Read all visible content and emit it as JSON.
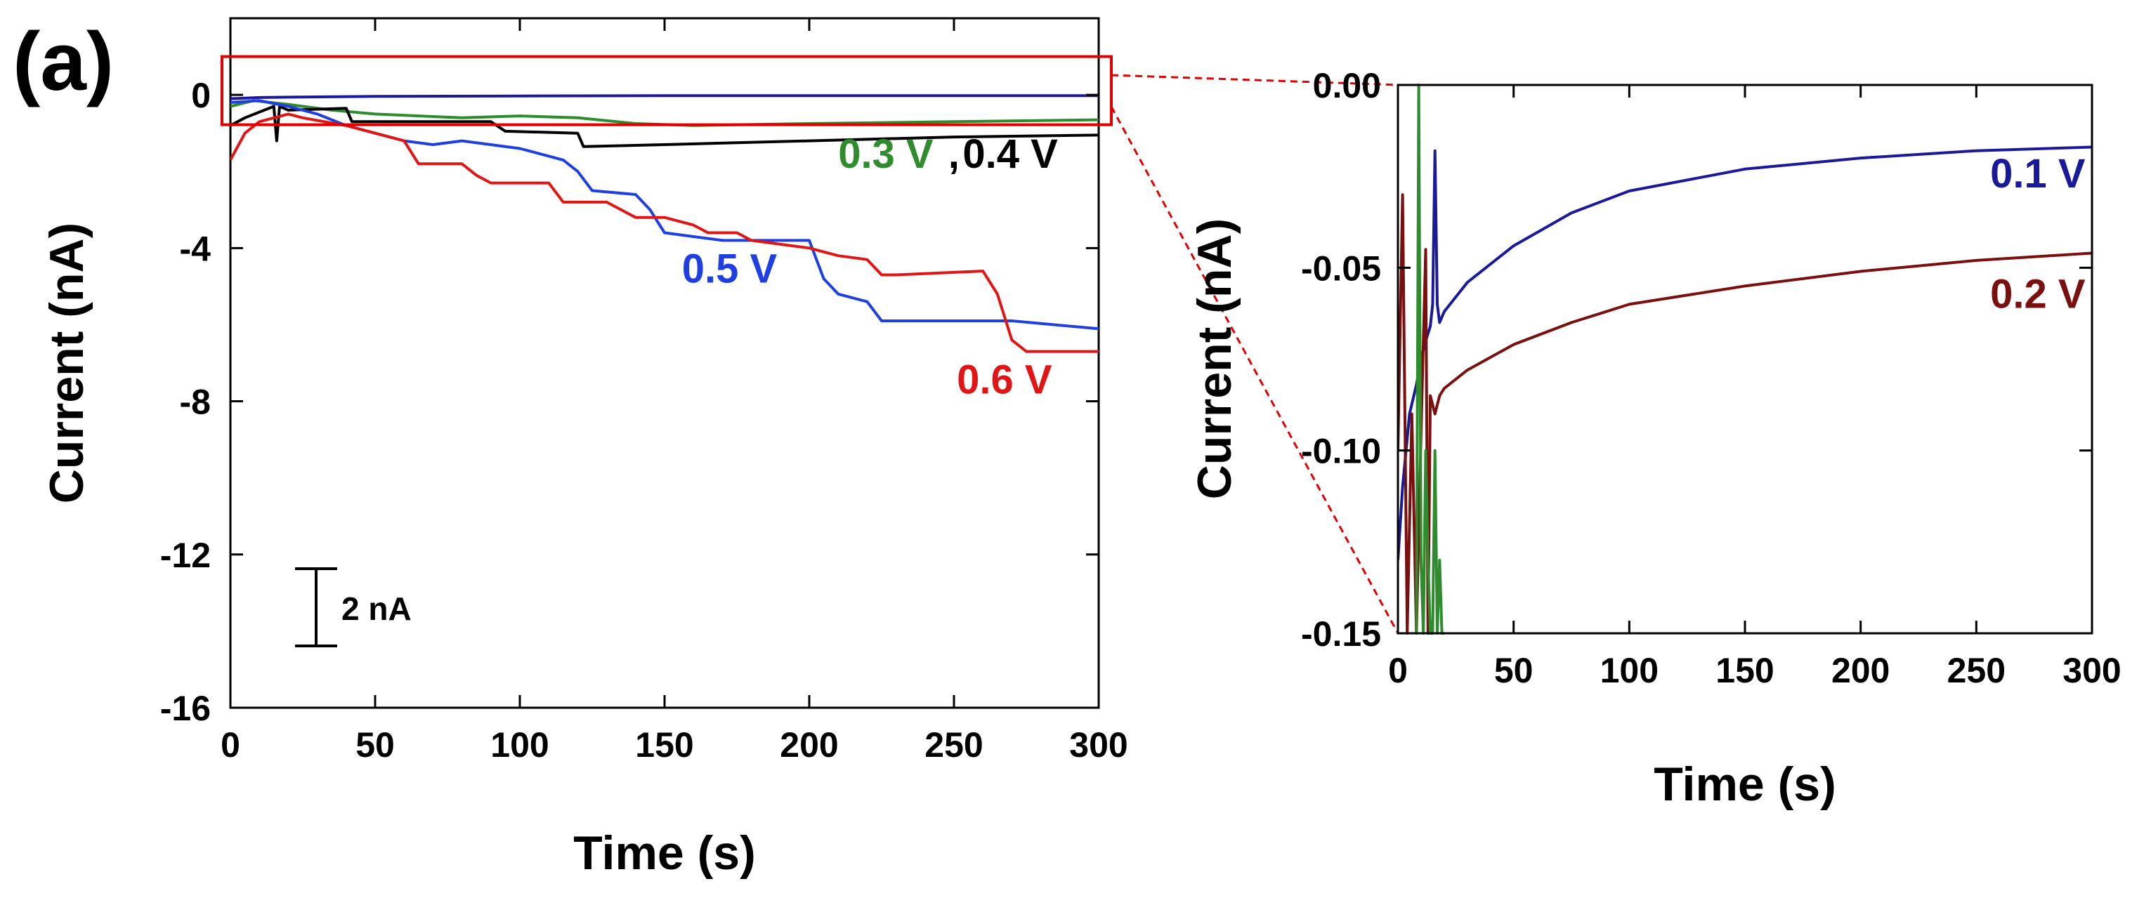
{
  "panel_label": "(a)",
  "scale_bar_label": "2 nA",
  "chart_data": [
    {
      "type": "line",
      "name": "main",
      "title": "",
      "xlabel": "Time (s)",
      "ylabel": "Current (nA)",
      "xlim": [
        0,
        300
      ],
      "ylim": [
        -16,
        2
      ],
      "xticks": [
        0,
        50,
        100,
        150,
        200,
        250,
        300
      ],
      "yticks": [
        0,
        -4,
        -8,
        -12,
        -16
      ],
      "grid": false,
      "zoom_box": {
        "x": [
          0,
          300
        ],
        "y": [
          -0.45,
          0.45
        ]
      },
      "series": [
        {
          "name": "0.1 V",
          "color": "#1a1a99",
          "x": [
            0,
            10,
            20,
            50,
            100,
            150,
            200,
            250,
            300
          ],
          "y": [
            -0.1,
            -0.07,
            -0.06,
            -0.04,
            -0.03,
            -0.02,
            -0.02,
            -0.02,
            -0.02
          ]
        },
        {
          "name": "0.3 V",
          "color": "#2e8b2e",
          "x": [
            0,
            8,
            20,
            35,
            50,
            80,
            100,
            120,
            140,
            160,
            200,
            250,
            300
          ],
          "y": [
            -0.3,
            -0.15,
            -0.25,
            -0.4,
            -0.5,
            -0.6,
            -0.55,
            -0.6,
            -0.75,
            -0.8,
            -0.75,
            -0.7,
            -0.65
          ]
        },
        {
          "name": "0.4 V",
          "color": "#000000",
          "x": [
            0,
            5,
            15,
            16,
            17,
            20,
            40,
            42,
            90,
            95,
            120,
            122,
            150,
            200,
            250,
            300
          ],
          "y": [
            -0.8,
            -0.6,
            -0.3,
            -1.2,
            -0.3,
            -0.4,
            -0.35,
            -0.7,
            -0.7,
            -0.95,
            -1.0,
            -1.35,
            -1.3,
            -1.2,
            -1.1,
            -1.05
          ]
        },
        {
          "name": "0.5 V",
          "color": "#1f3fe0",
          "x": [
            0,
            10,
            20,
            30,
            40,
            50,
            60,
            70,
            80,
            100,
            110,
            115,
            120,
            125,
            140,
            145,
            150,
            160,
            170,
            200,
            205,
            210,
            220,
            225,
            250,
            270,
            299,
            300
          ],
          "y": [
            -0.2,
            -0.15,
            -0.3,
            -0.5,
            -0.8,
            -1.0,
            -1.2,
            -1.3,
            -1.2,
            -1.4,
            -1.6,
            -1.7,
            -2.0,
            -2.5,
            -2.6,
            -3.0,
            -3.6,
            -3.7,
            -3.8,
            -3.8,
            -4.8,
            -5.2,
            -5.4,
            -5.9,
            -5.9,
            -5.9,
            -6.1,
            -6.1
          ]
        },
        {
          "name": "0.6 V",
          "color": "#e01515",
          "x": [
            0,
            5,
            10,
            20,
            25,
            40,
            60,
            65,
            80,
            85,
            90,
            110,
            115,
            130,
            140,
            150,
            160,
            165,
            175,
            180,
            190,
            200,
            210,
            220,
            225,
            230,
            260,
            265,
            270,
            275,
            300
          ],
          "y": [
            -1.7,
            -1.0,
            -0.7,
            -0.5,
            -0.6,
            -0.8,
            -1.2,
            -1.8,
            -1.8,
            -2.1,
            -2.3,
            -2.3,
            -2.8,
            -2.8,
            -3.2,
            -3.2,
            -3.4,
            -3.6,
            -3.6,
            -3.8,
            -3.9,
            -4.0,
            -4.2,
            -4.3,
            -4.7,
            -4.7,
            -4.6,
            -5.2,
            -6.4,
            -6.7,
            -6.7
          ]
        }
      ],
      "annotations": [
        {
          "text": "0.3 V",
          "color": "#2e8b2e",
          "x": 210,
          "y": -1.9
        },
        {
          "text": ",",
          "color": "#000000",
          "x": 248,
          "y": -1.9
        },
        {
          "text": "0.4 V",
          "color": "#000000",
          "x": 253,
          "y": -1.9
        },
        {
          "text": "0.5 V",
          "color": "#1f3fe0",
          "x": 156,
          "y": -4.9
        },
        {
          "text": "0.6 V",
          "color": "#e01515",
          "x": 251,
          "y": -7.8
        }
      ]
    },
    {
      "type": "line",
      "name": "inset",
      "title": "",
      "xlabel": "Time (s)",
      "ylabel": "Current (nA)",
      "xlim": [
        0,
        300
      ],
      "ylim": [
        -0.15,
        0.0
      ],
      "xticks": [
        0,
        50,
        100,
        150,
        200,
        250,
        300
      ],
      "yticks": [
        "0.00",
        "-0.05",
        "-0.10",
        "-0.15"
      ],
      "grid": false,
      "series": [
        {
          "name": "0.1 V",
          "color": "#1a1a99",
          "x": [
            0,
            2,
            5,
            8,
            10,
            12,
            14,
            15,
            16,
            17,
            18,
            20,
            30,
            50,
            75,
            100,
            150,
            200,
            250,
            300
          ],
          "y": [
            -0.13,
            -0.11,
            -0.09,
            -0.082,
            -0.075,
            -0.07,
            -0.066,
            -0.06,
            -0.018,
            -0.06,
            -0.065,
            -0.062,
            -0.054,
            -0.044,
            -0.035,
            -0.029,
            -0.023,
            -0.02,
            -0.018,
            -0.017
          ]
        },
        {
          "name": "0.2 V",
          "color": "#7a0f0f",
          "x": [
            0,
            2,
            4,
            6,
            8,
            10,
            12,
            13,
            14,
            16,
            18,
            20,
            30,
            50,
            75,
            100,
            150,
            200,
            250,
            300
          ],
          "y": [
            -0.1,
            -0.03,
            -0.15,
            -0.09,
            -0.15,
            -0.095,
            -0.045,
            -0.15,
            -0.085,
            -0.09,
            -0.085,
            -0.083,
            -0.078,
            -0.071,
            -0.065,
            -0.06,
            -0.055,
            -0.051,
            -0.048,
            -0.046
          ]
        },
        {
          "name": "0.3 V",
          "color": "#2e8b2e",
          "x": [
            8,
            9,
            10,
            11,
            12,
            13,
            14,
            15,
            16,
            17,
            18,
            19,
            20
          ],
          "y": [
            -0.15,
            0.0,
            -0.13,
            -0.15,
            -0.1,
            -0.13,
            -0.15,
            -0.15,
            -0.1,
            -0.15,
            -0.13,
            -0.15,
            -0.15
          ]
        }
      ],
      "annotations": [
        {
          "text": "0.1 V",
          "color": "#1a1a99",
          "x": 256,
          "y": -0.028
        },
        {
          "text": "0.2 V",
          "color": "#7a0f0f",
          "x": 256,
          "y": -0.061
        }
      ]
    }
  ]
}
